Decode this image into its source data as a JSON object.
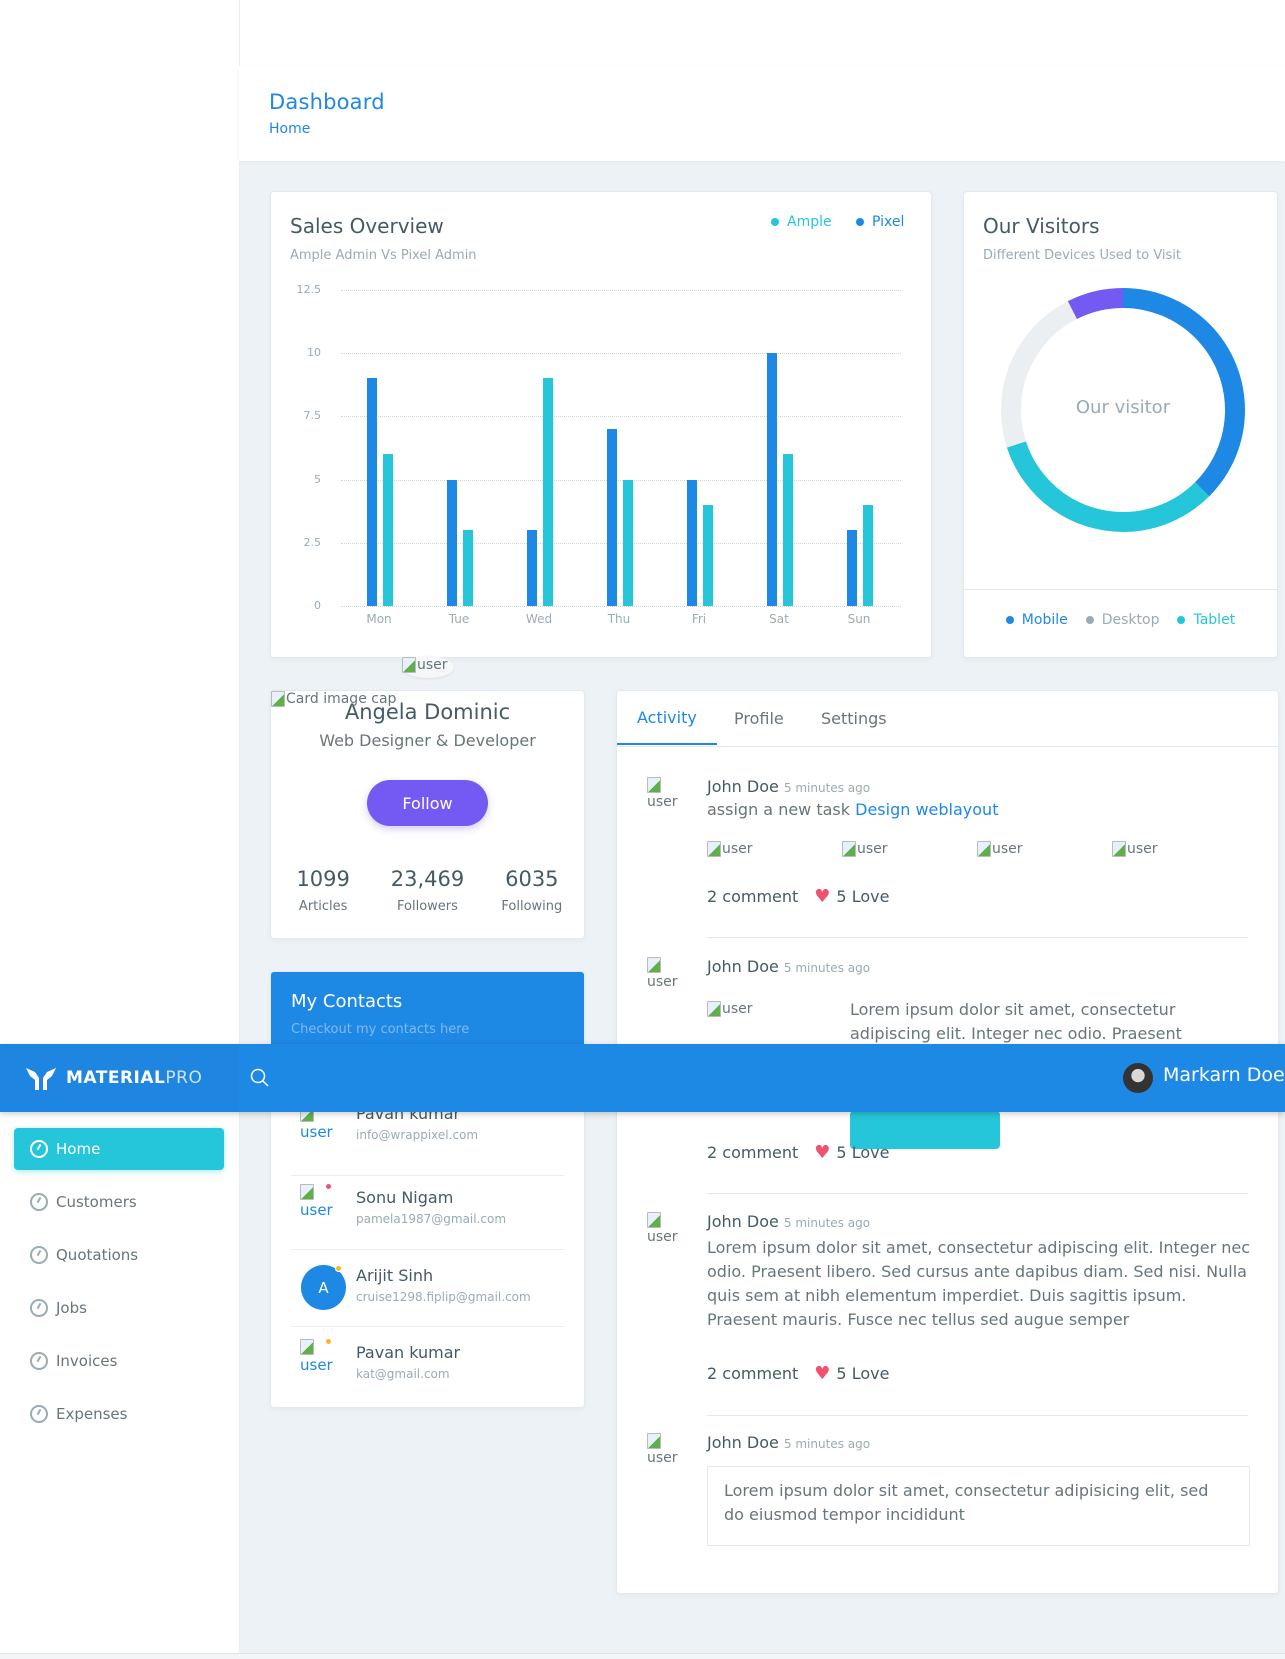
{
  "brand": {
    "name_bold": "MATERIAL",
    "name_light": "PRO"
  },
  "header": {
    "user_name": "Markarn Doe",
    "search_icon": "search-icon"
  },
  "page_title": {
    "title": "Dashboard",
    "breadcrumb": "Home"
  },
  "sidebar": {
    "items": [
      {
        "label": "Home",
        "icon": "gauge-icon",
        "active": true
      },
      {
        "label": "Customers",
        "icon": "gauge-icon"
      },
      {
        "label": "Quotations",
        "icon": "gauge-icon"
      },
      {
        "label": "Jobs",
        "icon": "gauge-icon"
      },
      {
        "label": "Invoices",
        "icon": "gauge-icon"
      },
      {
        "label": "Expenses",
        "icon": "gauge-icon"
      }
    ]
  },
  "sales": {
    "title": "Sales Overview",
    "subtitle": "Ample Admin Vs Pixel Admin",
    "legend": [
      {
        "label": "Ample",
        "color": "#26c6da"
      },
      {
        "label": "Pixel",
        "color": "#1e88e5"
      }
    ]
  },
  "visitors": {
    "title": "Our Visitors",
    "subtitle": "Different Devices Used to Visit",
    "center_label": "Our visitor",
    "legend": [
      {
        "label": "Mobile",
        "color": "#1e88e5"
      },
      {
        "label": "Desktop",
        "color": "#99abb4"
      },
      {
        "label": "Tablet",
        "color": "#26c6da"
      }
    ]
  },
  "chart_data": [
    {
      "type": "bar",
      "title": "Sales Overview",
      "subtitle": "Ample Admin Vs Pixel Admin",
      "categories": [
        "Mon",
        "Tue",
        "Wed",
        "Thu",
        "Fri",
        "Sat",
        "Sun"
      ],
      "series": [
        {
          "name": "Pixel",
          "color": "#1e88e5",
          "values": [
            9,
            5,
            3,
            7,
            5,
            10,
            3
          ]
        },
        {
          "name": "Ample",
          "color": "#26c6da",
          "values": [
            6,
            3,
            9,
            5,
            4,
            6,
            4
          ]
        }
      ],
      "yticks": [
        "0",
        "2.5",
        "5",
        "7.5",
        "10",
        "12.5"
      ],
      "ylim": [
        0,
        12.5
      ],
      "grid": true,
      "legend_position": "top-right",
      "xlabel": "",
      "ylabel": ""
    },
    {
      "type": "pie",
      "title": "Our Visitors",
      "subtitle": "Different Devices Used to Visit",
      "donut": true,
      "center_label": "Our visitor",
      "slices": [
        {
          "name": "Mobile",
          "value": 37.5,
          "color": "#1e88e5"
        },
        {
          "name": "Tablet",
          "value": 32.5,
          "color": "#26c6da"
        },
        {
          "name": "Desktop",
          "value": 22.5,
          "color": "#eceff1"
        },
        {
          "name": "Other",
          "value": 7.5,
          "color": "#745af2"
        }
      ]
    }
  ],
  "profile": {
    "cover_alt": "Card image cap",
    "avatar_alt": "user",
    "name": "Angela Dominic",
    "role": "Web Designer & Developer",
    "follow_label": "Follow",
    "stats": [
      {
        "value": "1099",
        "label": "Articles"
      },
      {
        "value": "23,469",
        "label": "Followers"
      },
      {
        "value": "6035",
        "label": "Following"
      }
    ]
  },
  "contacts": {
    "title": "My Contacts",
    "subtitle": "Checkout my contacts here",
    "items": [
      {
        "name": "Pavan kumar",
        "email": "info@wrappixel.com",
        "avatar_alt": "user",
        "status": ""
      },
      {
        "name": "Sonu Nigam",
        "email": "pamela1987@gmail.com",
        "avatar_alt": "user",
        "status": "#ef5370"
      },
      {
        "name": "Arijit Sinh",
        "email": "cruise1298.fiplip@gmail.com",
        "initial": "A",
        "status": "#ffb22b"
      },
      {
        "name": "Pavan kumar",
        "email": "kat@gmail.com",
        "avatar_alt": "user",
        "status": "#ffb22b"
      }
    ]
  },
  "activity": {
    "tabs": [
      {
        "label": "Activity",
        "active": true
      },
      {
        "label": "Profile"
      },
      {
        "label": "Settings"
      }
    ],
    "items": [
      {
        "name": "John Doe",
        "time": "5 minutes ago",
        "text": "assign a new task ",
        "link": "Design weblayout",
        "images": [
          "user",
          "user",
          "user",
          "user"
        ],
        "comments": "2 comment",
        "love": "5 Love"
      },
      {
        "name": "John Doe",
        "time": "5 minutes ago",
        "image": "user",
        "text": "Lorem ipsum dolor sit amet, consectetur adipiscing elit. Integer nec odio. Praesent libero.",
        "comments": "2 comment",
        "love": "5 Love"
      },
      {
        "name": "John Doe",
        "time": "5 minutes ago",
        "text": "Lorem ipsum dolor sit amet, consectetur adipiscing elit. Integer nec odio. Praesent libero. Sed cursus ante dapibus diam. Sed nisi. Nulla quis sem at nibh elementum imperdiet. Duis sagittis ipsum. Praesent mauris. Fusce nec tellus sed augue semper",
        "comments": "2 comment",
        "love": "5 Love"
      },
      {
        "name": "John Doe",
        "time": "5 minutes ago",
        "quote": "Lorem ipsum dolor sit amet, consectetur adipisicing elit, sed do eiusmod tempor incididunt"
      }
    ],
    "avatar_alt": "user"
  }
}
